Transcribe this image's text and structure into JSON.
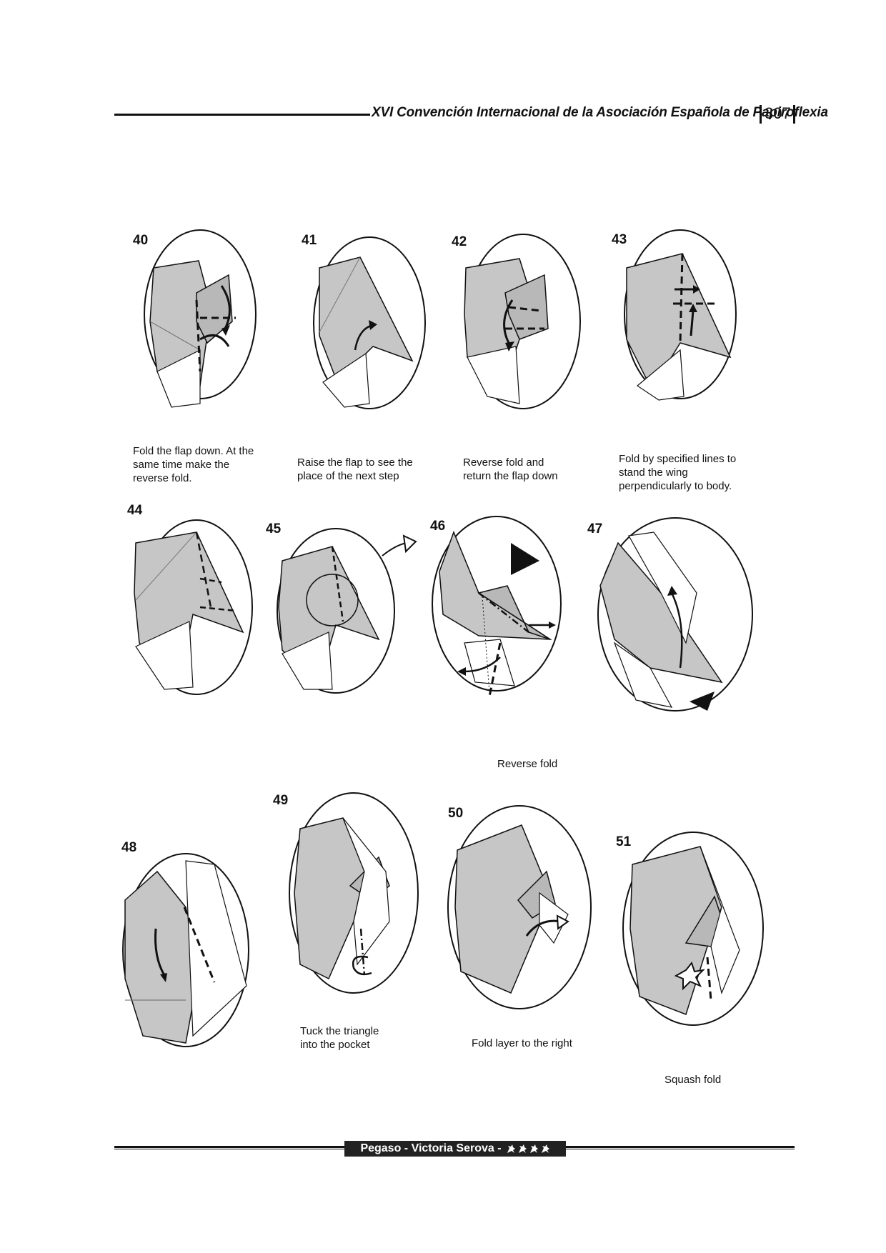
{
  "header": {
    "title": "XVI Convención Internacional de la Asociación Española de Papiroflexia",
    "page_number": "307"
  },
  "steps": [
    {
      "number": "40",
      "caption": "Fold the flap down. At the\nsame time make the\nreverse fold."
    },
    {
      "number": "41",
      "caption": "Raise the flap to see the\nplace of the next step"
    },
    {
      "number": "42",
      "caption": "Reverse fold and\nreturn the flap down"
    },
    {
      "number": "43",
      "caption": "Fold by specified lines to\nstand the wing\nperpendicularly to body."
    },
    {
      "number": "44",
      "caption": ""
    },
    {
      "number": "45",
      "caption": ""
    },
    {
      "number": "46",
      "caption": "Reverse fold"
    },
    {
      "number": "47",
      "caption": ""
    },
    {
      "number": "48",
      "caption": ""
    },
    {
      "number": "49",
      "caption": "Tuck the triangle\ninto the pocket"
    },
    {
      "number": "50",
      "caption": "Fold layer to the right"
    },
    {
      "number": "51",
      "caption": "Squash fold"
    }
  ],
  "footer": {
    "text": "Pegaso - Victoria Serova -",
    "difficulty_icons": [
      "pegasus-icon",
      "pegasus-icon",
      "pegasus-icon",
      "pegasus-icon"
    ]
  },
  "colors": {
    "paper_gray": "#c6c6c6",
    "line": "#111111"
  }
}
